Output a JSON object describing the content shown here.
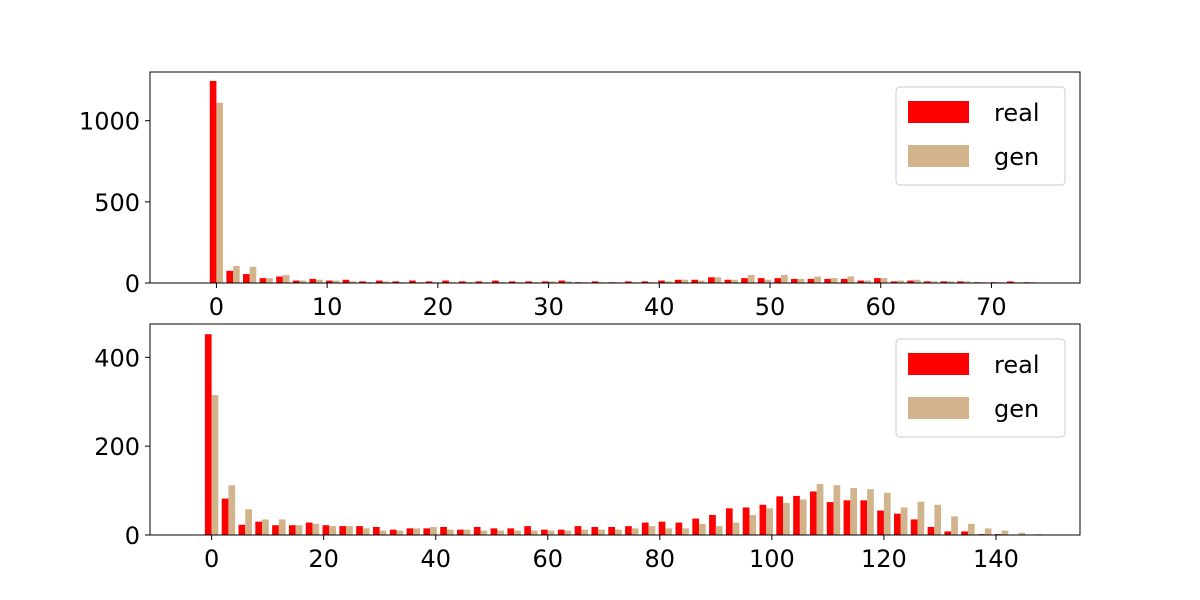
{
  "chart_data": [
    {
      "type": "bar",
      "title": "",
      "xlabel": "",
      "ylabel": "",
      "xlim": [
        -6,
        78
      ],
      "ylim": [
        0,
        1300
      ],
      "xticks": [
        0,
        10,
        20,
        30,
        40,
        50,
        60,
        70
      ],
      "yticks": [
        0,
        500,
        1000
      ],
      "bin_width": 1.5,
      "legend": {
        "position": "top-right"
      },
      "x": [
        0,
        1.5,
        3,
        4.5,
        6,
        7.5,
        9,
        10.5,
        12,
        13.5,
        15,
        16.5,
        18,
        19.5,
        21,
        22.5,
        24,
        25.5,
        27,
        28.5,
        30,
        31.5,
        33,
        34.5,
        36,
        37.5,
        39,
        40.5,
        42,
        43.5,
        45,
        46.5,
        48,
        49.5,
        51,
        52.5,
        54,
        55.5,
        57,
        58.5,
        60,
        61.5,
        63,
        64.5,
        66,
        67.5,
        69,
        70.5,
        72,
        73.5
      ],
      "series": [
        {
          "name": "real",
          "color": "#ff0000",
          "values": [
            1245,
            75,
            55,
            30,
            40,
            15,
            25,
            15,
            20,
            10,
            15,
            10,
            15,
            10,
            15,
            10,
            10,
            15,
            10,
            10,
            10,
            15,
            5,
            10,
            5,
            10,
            10,
            15,
            20,
            20,
            35,
            20,
            30,
            30,
            30,
            25,
            25,
            25,
            25,
            15,
            30,
            10,
            15,
            10,
            10,
            10,
            5,
            5,
            10,
            5
          ]
        },
        {
          "name": "gen",
          "color": "#d2b48c",
          "values": [
            1110,
            105,
            100,
            30,
            50,
            15,
            20,
            15,
            10,
            5,
            10,
            5,
            5,
            5,
            5,
            5,
            5,
            5,
            5,
            5,
            10,
            10,
            5,
            5,
            5,
            5,
            5,
            10,
            20,
            15,
            35,
            20,
            50,
            20,
            50,
            25,
            40,
            30,
            40,
            15,
            30,
            15,
            20,
            10,
            10,
            10,
            5,
            5,
            5,
            5
          ]
        }
      ]
    },
    {
      "type": "bar",
      "title": "",
      "xlabel": "",
      "ylabel": "",
      "xlim": [
        -11,
        155
      ],
      "ylim": [
        0,
        475
      ],
      "xticks": [
        0,
        20,
        40,
        60,
        80,
        100,
        120,
        140
      ],
      "yticks": [
        0,
        200,
        400
      ],
      "bin_width": 3,
      "legend": {
        "position": "top-right"
      },
      "x": [
        0,
        3,
        6,
        9,
        12,
        15,
        18,
        21,
        24,
        27,
        30,
        33,
        36,
        39,
        42,
        45,
        48,
        51,
        54,
        57,
        60,
        63,
        66,
        69,
        72,
        75,
        78,
        81,
        84,
        87,
        90,
        93,
        96,
        99,
        102,
        105,
        108,
        111,
        114,
        117,
        120,
        123,
        126,
        129,
        132,
        135,
        138,
        141,
        144,
        147
      ],
      "series": [
        {
          "name": "real",
          "color": "#ff0000",
          "values": [
            452,
            82,
            23,
            30,
            22,
            22,
            28,
            22,
            20,
            20,
            18,
            12,
            15,
            15,
            18,
            12,
            18,
            15,
            15,
            20,
            12,
            12,
            20,
            18,
            18,
            20,
            28,
            30,
            28,
            37,
            45,
            60,
            62,
            68,
            87,
            88,
            98,
            74,
            78,
            78,
            55,
            48,
            35,
            18,
            8,
            8,
            2,
            2,
            1,
            0
          ]
        },
        {
          "name": "gen",
          "color": "#d2b48c",
          "values": [
            315,
            112,
            58,
            35,
            35,
            22,
            25,
            20,
            20,
            15,
            10,
            10,
            15,
            18,
            12,
            12,
            10,
            10,
            10,
            10,
            10,
            10,
            12,
            12,
            12,
            15,
            20,
            15,
            15,
            25,
            20,
            28,
            45,
            60,
            72,
            80,
            115,
            112,
            106,
            103,
            95,
            62,
            75,
            68,
            42,
            25,
            15,
            10,
            5,
            2
          ]
        }
      ]
    }
  ]
}
